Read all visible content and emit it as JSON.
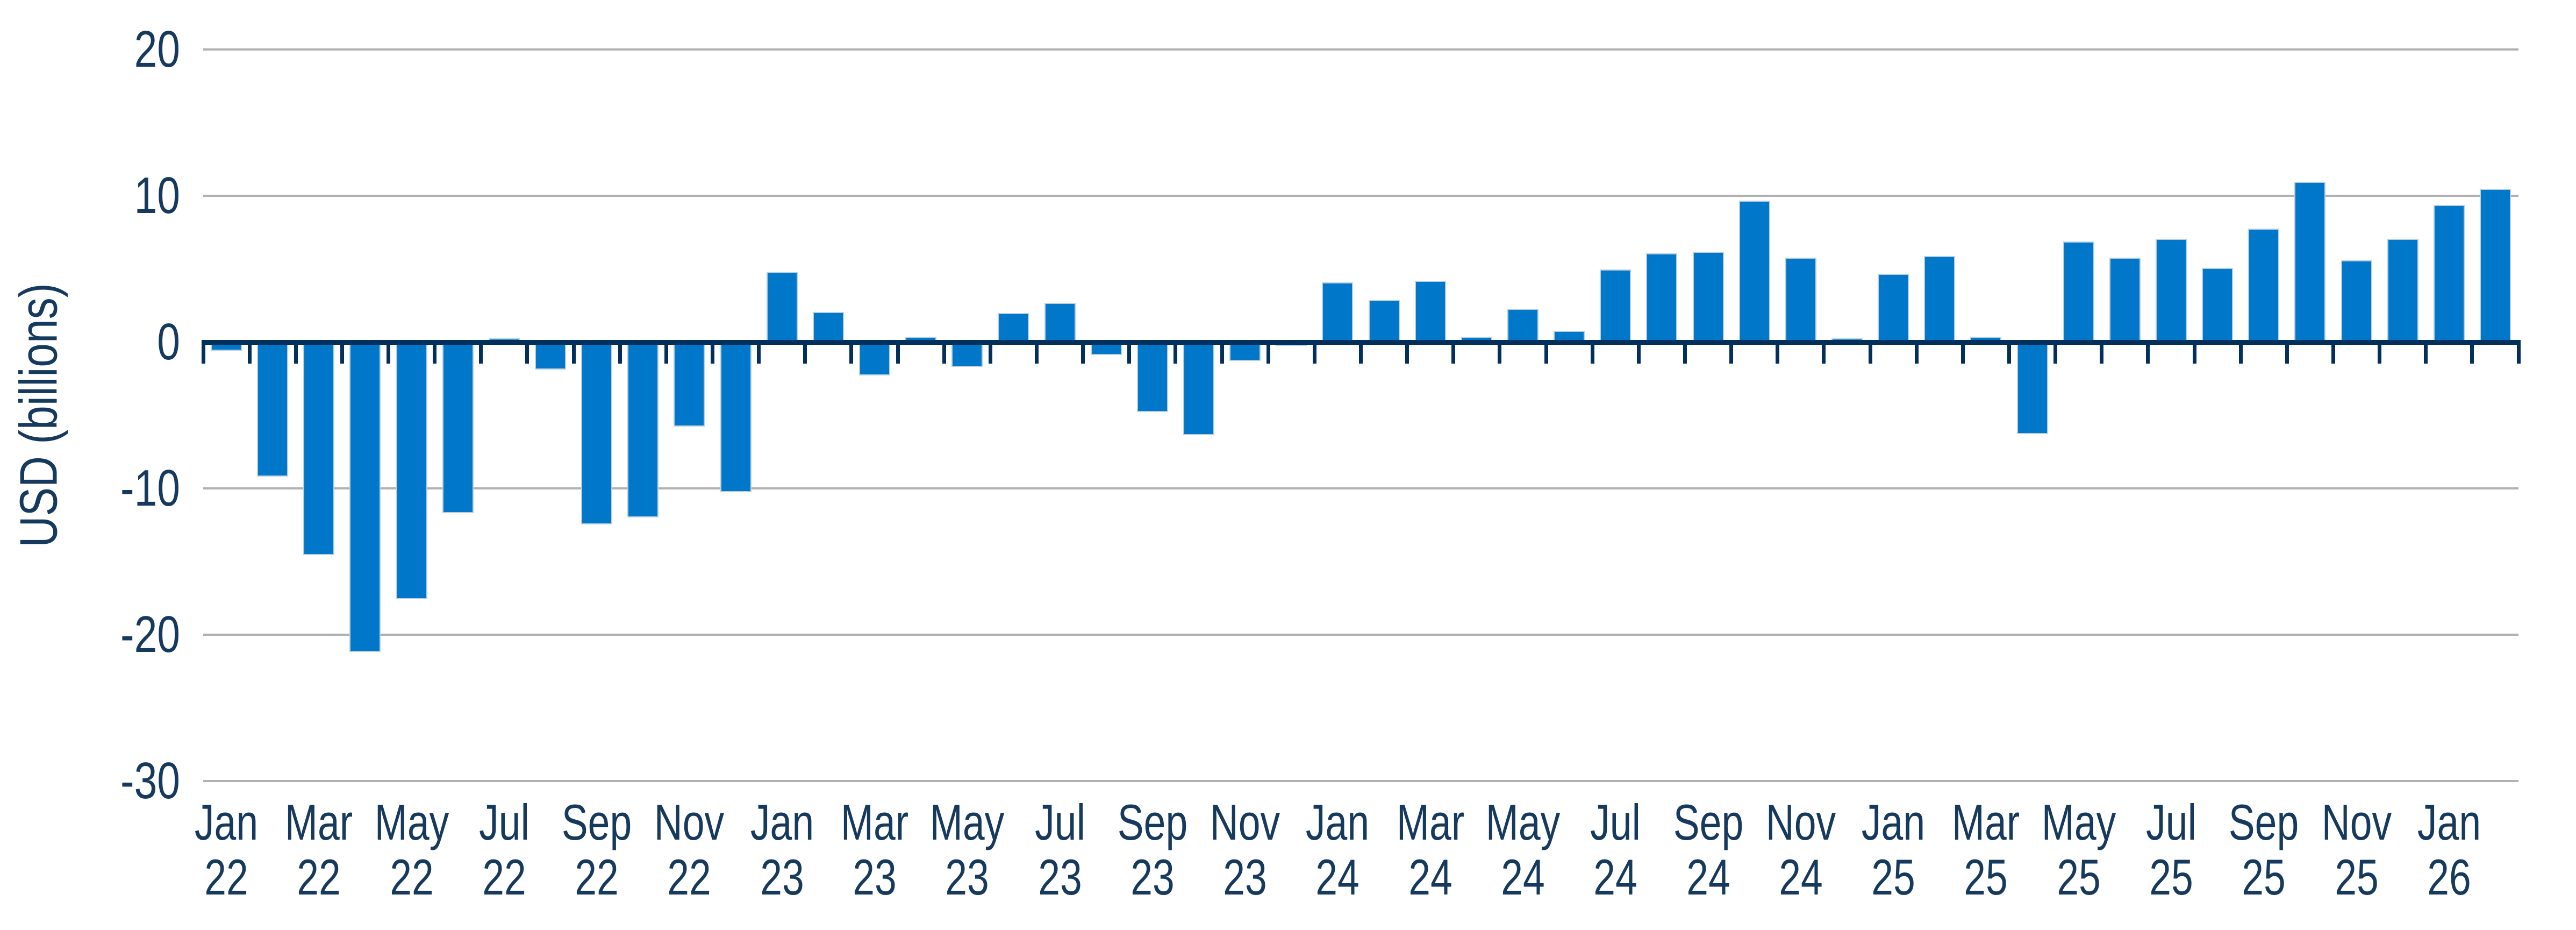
{
  "chart_data": {
    "type": "bar",
    "title": "",
    "xlabel": "",
    "ylabel": "USD (billions)",
    "ylim": [
      -30,
      20
    ],
    "yticks": [
      20,
      10,
      0,
      -10,
      -20,
      -30
    ],
    "grid": "horizontal",
    "legend": "none",
    "categories": [
      "Jan 22",
      "Feb 22",
      "Mar 22",
      "Apr 22",
      "May 22",
      "Jun 22",
      "Jul 22",
      "Aug 22",
      "Sep 22",
      "Oct 22",
      "Nov 22",
      "Dec 22",
      "Jan 23",
      "Feb 23",
      "Mar 23",
      "Apr 23",
      "May 23",
      "Jun 23",
      "Jul 23",
      "Aug 23",
      "Sep 23",
      "Oct 23",
      "Nov 23",
      "Dec 23",
      "Jan 24",
      "Feb 24",
      "Mar 24",
      "Apr 24",
      "May 24",
      "Jun 24",
      "Jul 24",
      "Aug 24",
      "Sep 24",
      "Oct 24",
      "Nov 24",
      "Dec 24",
      "Jan 25",
      "Feb 25",
      "Mar 25",
      "Apr 25",
      "May 25",
      "Jun 25",
      "Jul 25",
      "Aug 25",
      "Sep 25",
      "Oct 25",
      "Nov 25",
      "Dec 25",
      "Jan 26",
      "Feb 26"
    ],
    "values": [
      -0.5,
      -9.1,
      -14.5,
      -21.1,
      -17.5,
      -11.6,
      0.2,
      -1.8,
      -12.4,
      -11.9,
      -5.7,
      -10.2,
      4.7,
      2.0,
      -2.2,
      0.3,
      -1.6,
      1.9,
      2.6,
      -0.8,
      -4.7,
      -6.3,
      -1.2,
      -0.2,
      4.0,
      2.8,
      4.1,
      0.3,
      2.2,
      0.7,
      4.9,
      6.0,
      6.1,
      9.6,
      5.7,
      0.2,
      4.6,
      5.8,
      0.3,
      -6.2,
      6.8,
      5.7,
      7.0,
      5.0,
      7.7,
      10.9,
      5.5,
      7.0,
      9.3,
      10.4
    ],
    "x_tick_labels_shown": [
      "Jan 22",
      "Mar 22",
      "May 22",
      "Jul 22",
      "Sep 22",
      "Nov 22",
      "Jan 23",
      "Mar 23",
      "May 23",
      "Jul 23",
      "Sep 23",
      "Nov 23",
      "Jan 24",
      "Mar 24",
      "May 24",
      "Jul 24",
      "Sep 24",
      "Nov 24",
      "Jan 25",
      "Mar 25",
      "May 25",
      "Jul 25",
      "Sep 25",
      "Nov 25",
      "Jan 26"
    ]
  },
  "colors": {
    "bar_fill": "#0077c8",
    "bar_outline": "#b9cfe3",
    "axis": "#032f5c",
    "gridline": "#b1b1b1",
    "text": "#16395e",
    "background": "#ffffff"
  }
}
